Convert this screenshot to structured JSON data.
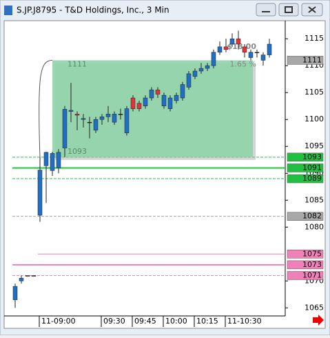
{
  "chart_data": {
    "type": "candlestick",
    "title": "S.JP.J8795 - T&D Holdings, Inc., 3 Min",
    "categories": [
      null,
      null,
      null,
      null,
      "11-09:00",
      null,
      null,
      null,
      null,
      null,
      null,
      null,
      null,
      null,
      "09:30",
      null,
      null,
      null,
      null,
      "09:45",
      null,
      null,
      null,
      null,
      "10:00",
      null,
      null,
      null,
      null,
      "10:15",
      null,
      null,
      null,
      null,
      "11-10:30",
      null,
      null,
      null,
      null,
      null,
      null,
      null
    ],
    "open": [
      1066.5,
      1070,
      1071,
      1071,
      1082.2,
      1091.4,
      1090.5,
      1091,
      1094.7,
      1101.5,
      1101,
      1100,
      1099.5,
      1098,
      1100,
      1100.5,
      1099.5,
      1101,
      1097.5,
      1104,
      1103,
      1102.5,
      1104,
      1105.5,
      1102.5,
      1102,
      1103.5,
      1104,
      1106,
      1108,
      1109,
      1109.5,
      1110,
      1112.5,
      1113.5,
      1114,
      1115,
      1113.5,
      1111.5,
      1112.5,
      1111,
      1112
    ],
    "high": [
      1069.5,
      1071,
      1071,
      1071,
      1093,
      1094,
      1094,
      1094.5,
      1102.5,
      1106.8,
      1101.5,
      1101,
      1100.5,
      1100.5,
      1101,
      1102.5,
      1101.5,
      1102,
      1102.5,
      1104.5,
      1103.5,
      1104.5,
      1106,
      1106,
      1105,
      1104.5,
      1105,
      1107,
      1109,
      1109.5,
      1110.5,
      1110.5,
      1113,
      1114.5,
      1115,
      1116,
      1116.5,
      1114,
      1113,
      1113,
      1112.5,
      1115
    ],
    "low": [
      1065,
      1069.5,
      1071,
      1071,
      1081,
      1084.5,
      1089.5,
      1090,
      1093,
      1099.5,
      1098,
      1098.5,
      1096.5,
      1097.5,
      1099,
      1099.5,
      1099,
      1100,
      1097,
      1101.5,
      1101.5,
      1102,
      1103.5,
      1104,
      1102,
      1101.5,
      1103,
      1103.5,
      1105.5,
      1107.5,
      1108.5,
      1109,
      1109.5,
      1112,
      1112.5,
      1113.5,
      1113,
      1111.5,
      1111,
      1111.5,
      1110,
      1111.5
    ],
    "close": [
      1069,
      1070.5,
      1071,
      1071,
      1090.6,
      1093.9,
      1093.7,
      1093.9,
      1101.9,
      1101.7,
      1100.8,
      1100.2,
      1099.5,
      1100,
      1100.5,
      1101,
      1101,
      1101,
      1102,
      1102,
      1102,
      1104,
      1105.5,
      1104.7,
      1104.5,
      1104,
      1104.5,
      1106.5,
      1108.5,
      1109,
      1109.5,
      1110,
      1112.5,
      1113.5,
      1113,
      1115,
      1114,
      1112.5,
      1112.5,
      1112.5,
      1112,
      1114
    ],
    "up_color": "#1f6fc5",
    "down_color": "#e0343a",
    "ylim": [
      1063.5,
      1118.1
    ],
    "yticks": [
      1065,
      1070,
      1080,
      1085,
      1090,
      1095,
      1100,
      1105,
      1110,
      1115
    ],
    "levels": [
      {
        "value": 1111,
        "color": "#a8a8a8",
        "line": "none"
      },
      {
        "value": 1093,
        "color": "#22c040",
        "line": "dashed"
      },
      {
        "value": 1091,
        "color": "#22c040",
        "line": "solid"
      },
      {
        "value": 1089,
        "color": "#22c040",
        "line": "dashed"
      },
      {
        "value": 1082,
        "color": "#a8a8a8",
        "line": "dashed"
      },
      {
        "value": 1075,
        "color": "#f080b8",
        "line": "thin"
      },
      {
        "value": 1073,
        "color": "#f080b8",
        "line": "solid"
      },
      {
        "value": 1071,
        "color": "#f080b8",
        "line": "dashed"
      }
    ],
    "box": {
      "top": 1111,
      "bottom": 1093,
      "change_label": "$18.00",
      "percent_label": "1.65 %",
      "color": "#8fd4a8"
    }
  }
}
